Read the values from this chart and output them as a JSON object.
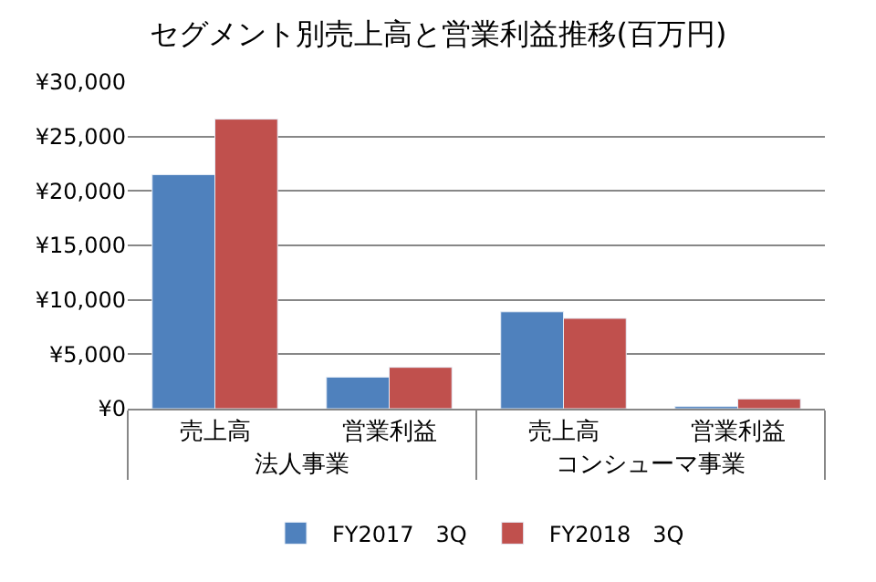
{
  "chart_data": {
    "type": "bar",
    "title": "セグメント別売上高と営業利益推移(百万円)",
    "categories": [
      "売上高",
      "営業利益",
      "売上高",
      "営業利益"
    ],
    "annotations": [
      "法人事業",
      "コンシューマ事業"
    ],
    "series": [
      {
        "name": "FY2017　3Q",
        "color": "#4f81bd",
        "values": [
          21500,
          2900,
          8900,
          200
        ]
      },
      {
        "name": "FY2018　3Q",
        "color": "#c0504d",
        "values": [
          26600,
          3800,
          8300,
          900
        ]
      }
    ],
    "ylim": [
      0,
      30000
    ],
    "yticks": [
      {
        "value": 0,
        "label": "¥0"
      },
      {
        "value": 5000,
        "label": "¥5,000"
      },
      {
        "value": 10000,
        "label": "¥10,000"
      },
      {
        "value": 15000,
        "label": "¥15,000"
      },
      {
        "value": 20000,
        "label": "¥20,000"
      },
      {
        "value": 25000,
        "label": "¥25,000"
      },
      {
        "value": 30000,
        "label": "¥30,000"
      }
    ],
    "grid": "y",
    "legend": "bottom"
  }
}
